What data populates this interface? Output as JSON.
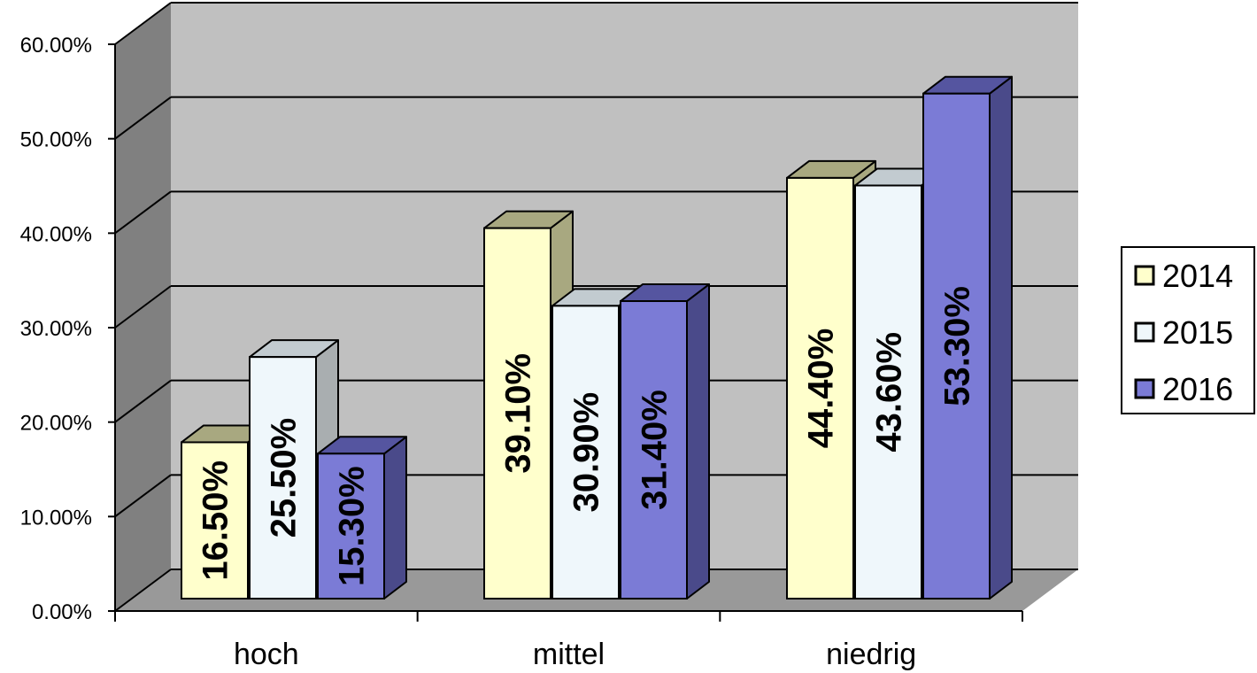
{
  "chart_data": {
    "type": "bar",
    "categories": [
      "hoch",
      "mittel",
      "niedrig"
    ],
    "series": [
      {
        "name": "2014",
        "values": [
          16.5,
          39.1,
          44.4
        ],
        "labels": [
          "16.50%",
          "39.10%",
          "44.40%"
        ],
        "color": "#ffffcc"
      },
      {
        "name": "2015",
        "values": [
          25.5,
          30.9,
          43.6
        ],
        "labels": [
          "25.50%",
          "30.90%",
          "43.60%"
        ],
        "color": "#eff7fb"
      },
      {
        "name": "2016",
        "values": [
          15.3,
          31.4,
          53.3
        ],
        "labels": [
          "15.30%",
          "31.40%",
          "53.30%"
        ],
        "color": "#7b7bd6"
      }
    ],
    "yticks": [
      "0.00%",
      "10.00%",
      "20.00%",
      "30.00%",
      "40.00%",
      "50.00%",
      "60.00%"
    ],
    "ylim": [
      0,
      60
    ],
    "legend_position": "right",
    "grid": true
  }
}
